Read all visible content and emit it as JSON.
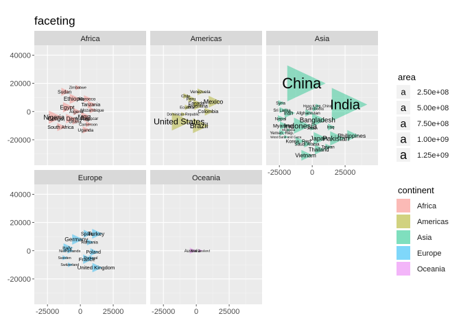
{
  "chart_data": {
    "type": "scatter",
    "title": "faceting",
    "xlabel": "",
    "ylabel": "",
    "xlim": [
      -35000,
      50000
    ],
    "ylim": [
      -38000,
      47000
    ],
    "x_ticks": [
      -25000,
      0,
      25000
    ],
    "y_ticks": [
      40000,
      20000,
      0,
      -20000
    ],
    "x_tick_labels": [
      "-25000",
      "0",
      "25000"
    ],
    "y_tick_labels": [
      "40000",
      "20000",
      "0",
      "-20000"
    ],
    "grid": true,
    "legend_placement": "right",
    "size_legend": {
      "title": "area",
      "items": [
        {
          "label": "2.50e+08",
          "value": 250000000
        },
        {
          "label": "5.00e+08",
          "value": 500000000
        },
        {
          "label": "7.50e+08",
          "value": 750000000
        },
        {
          "label": "1.00e+09",
          "value": 1000000000
        },
        {
          "label": "1.25e+09",
          "value": 1250000000
        }
      ]
    },
    "color_legend": {
      "title": "continent",
      "items": [
        {
          "label": "Africa",
          "color": "#F8766D"
        },
        {
          "label": "Americas",
          "color": "#A3A500"
        },
        {
          "label": "Asia",
          "color": "#00BF7D"
        },
        {
          "label": "Europe",
          "color": "#00B0F6"
        },
        {
          "label": "Oceania",
          "color": "#E76BF3"
        }
      ]
    },
    "facets": [
      {
        "name": "Africa",
        "color": "#F8766D",
        "points": [
          {
            "label": "Nigeria",
            "x": -20000,
            "y": -4000,
            "area": 140000000
          },
          {
            "label": "Ethiopia",
            "x": -5000,
            "y": 9000,
            "area": 76000000
          },
          {
            "label": "Egypt",
            "x": -10000,
            "y": 3000,
            "area": 80000000
          },
          {
            "label": "Sudan",
            "x": -12000,
            "y": 14000,
            "area": 42000000
          },
          {
            "label": "Congo, Dem. Rep.",
            "x": -8000,
            "y": -5000,
            "area": 64000000
          },
          {
            "label": "South Africa",
            "x": -15000,
            "y": -11000,
            "area": 44000000
          },
          {
            "label": "Morocco",
            "x": 5000,
            "y": 9000,
            "area": 33000000
          },
          {
            "label": "Tanzania",
            "x": 8000,
            "y": 5000,
            "area": 39000000
          },
          {
            "label": "Kenya",
            "x": 3000,
            "y": -3000,
            "area": 35000000
          },
          {
            "label": "Algeria",
            "x": -3000,
            "y": 0,
            "area": 33000000
          },
          {
            "label": "Uganda",
            "x": 4000,
            "y": -13000,
            "area": 29000000
          },
          {
            "label": "Zimbabwe",
            "x": -2000,
            "y": 17000,
            "area": 12000000
          },
          {
            "label": "Mozambique",
            "x": 9000,
            "y": 1000,
            "area": 20000000
          },
          {
            "label": "Madagascar",
            "x": 5000,
            "y": -5000,
            "area": 19000000
          },
          {
            "label": "Ghana",
            "x": -4000,
            "y": -7000,
            "area": 22000000
          },
          {
            "label": "Cameroon",
            "x": 6000,
            "y": -9000,
            "area": 17000000
          }
        ]
      },
      {
        "name": "Americas",
        "color": "#A3A500",
        "points": [
          {
            "label": "United States",
            "x": -13000,
            "y": -7000,
            "area": 301000000
          },
          {
            "label": "Brazil",
            "x": 2000,
            "y": -10000,
            "area": 190000000
          },
          {
            "label": "Mexico",
            "x": 13000,
            "y": 7000,
            "area": 108000000
          },
          {
            "label": "Colombia",
            "x": 9000,
            "y": 0,
            "area": 44000000
          },
          {
            "label": "Venezuela",
            "x": 3000,
            "y": 14000,
            "area": 26000000
          },
          {
            "label": "Argentina",
            "x": 1000,
            "y": 4000,
            "area": 40000000
          },
          {
            "label": "Peru",
            "x": -4000,
            "y": 9000,
            "area": 28000000
          },
          {
            "label": "Canada",
            "x": 0,
            "y": 6000,
            "area": 33000000
          },
          {
            "label": "Chile",
            "x": -8000,
            "y": 11000,
            "area": 16000000
          },
          {
            "label": "Ecuador",
            "x": -7000,
            "y": 3000,
            "area": 14000000
          },
          {
            "label": "Dominican Republic",
            "x": -10000,
            "y": -2000,
            "area": 9000000
          }
        ]
      },
      {
        "name": "Asia",
        "color": "#00BF7D",
        "points": [
          {
            "label": "China",
            "x": -8000,
            "y": 20000,
            "area": 1318000000
          },
          {
            "label": "India",
            "x": 25000,
            "y": 5000,
            "area": 1110000000
          },
          {
            "label": "Indonesia",
            "x": -9000,
            "y": -10000,
            "area": 224000000
          },
          {
            "label": "Bangladesh",
            "x": 4000,
            "y": -6000,
            "area": 150000000
          },
          {
            "label": "Pakistan",
            "x": 18000,
            "y": -19000,
            "area": 169000000
          },
          {
            "label": "Japan",
            "x": 5000,
            "y": -19000,
            "area": 127000000
          },
          {
            "label": "Philippines",
            "x": 30000,
            "y": -17000,
            "area": 91000000
          },
          {
            "label": "Vietnam",
            "x": -5000,
            "y": -31000,
            "area": 85000000
          },
          {
            "label": "Thailand",
            "x": 5000,
            "y": -27000,
            "area": 65000000
          },
          {
            "label": "Iran",
            "x": -18000,
            "y": -1000,
            "area": 69000000
          },
          {
            "label": "Korea, Rep.",
            "x": -10000,
            "y": -21000,
            "area": 49000000
          },
          {
            "label": "Saudi Arabia",
            "x": -4000,
            "y": -23000,
            "area": 27000000
          },
          {
            "label": "Afghanistan",
            "x": -3000,
            "y": -1000,
            "area": 31000000
          },
          {
            "label": "Nepal",
            "x": -24000,
            "y": -5000,
            "area": 28000000
          },
          {
            "label": "Myanmar",
            "x": -22000,
            "y": -10000,
            "area": 47000000
          },
          {
            "label": "Iraq",
            "x": 14000,
            "y": -11000,
            "area": 27000000
          },
          {
            "label": "Taiwan",
            "x": 12000,
            "y": -25000,
            "area": 23000000
          },
          {
            "label": "Sri Lanka",
            "x": -23000,
            "y": 1000,
            "area": 20000000
          },
          {
            "label": "Syria",
            "x": -24000,
            "y": 6000,
            "area": 19000000
          },
          {
            "label": "Hong Kong, China",
            "x": 4000,
            "y": 4000,
            "area": 7000000
          },
          {
            "label": "Cambodia",
            "x": 2000,
            "y": 2000,
            "area": 14000000
          },
          {
            "label": "Jordan",
            "x": 0,
            "y": -12000,
            "area": 6000000
          },
          {
            "label": "Mongolia",
            "x": -18000,
            "y": -13000,
            "area": 3000000
          },
          {
            "label": "Yemen, Rep.",
            "x": -23000,
            "y": -15000,
            "area": 22000000
          },
          {
            "label": "West Bank and Gaza",
            "x": -20000,
            "y": -18000,
            "area": 4000000
          }
        ]
      },
      {
        "name": "Europe",
        "color": "#00B0F6",
        "points": [
          {
            "label": "Germany",
            "x": -3000,
            "y": 8000,
            "area": 82000000
          },
          {
            "label": "Turkey",
            "x": 12000,
            "y": 12000,
            "area": 71000000
          },
          {
            "label": "Spain",
            "x": 5000,
            "y": 12000,
            "area": 40000000
          },
          {
            "label": "Italy",
            "x": -10000,
            "y": 2000,
            "area": 58000000
          },
          {
            "label": "France",
            "x": 5000,
            "y": -6000,
            "area": 61000000
          },
          {
            "label": "United Kingdom",
            "x": 12000,
            "y": -12000,
            "area": 61000000
          },
          {
            "label": "Poland",
            "x": 10000,
            "y": -1000,
            "area": 38000000
          },
          {
            "label": "Romania",
            "x": 7000,
            "y": 6000,
            "area": 22000000
          },
          {
            "label": "Netherlands",
            "x": -8000,
            "y": 0,
            "area": 16000000
          },
          {
            "label": "Portugal",
            "x": 8000,
            "y": -5000,
            "area": 10000000
          },
          {
            "label": "Sweden",
            "x": -12000,
            "y": -5000,
            "area": 9000000
          },
          {
            "label": "Switzerland",
            "x": -8000,
            "y": -10000,
            "area": 8000000
          }
        ]
      },
      {
        "name": "Oceania",
        "color": "#E76BF3",
        "points": [
          {
            "label": "Australia",
            "x": -3000,
            "y": 0,
            "area": 20000000
          },
          {
            "label": "New Zealand",
            "x": 3000,
            "y": 0,
            "area": 4000000
          }
        ]
      }
    ]
  }
}
